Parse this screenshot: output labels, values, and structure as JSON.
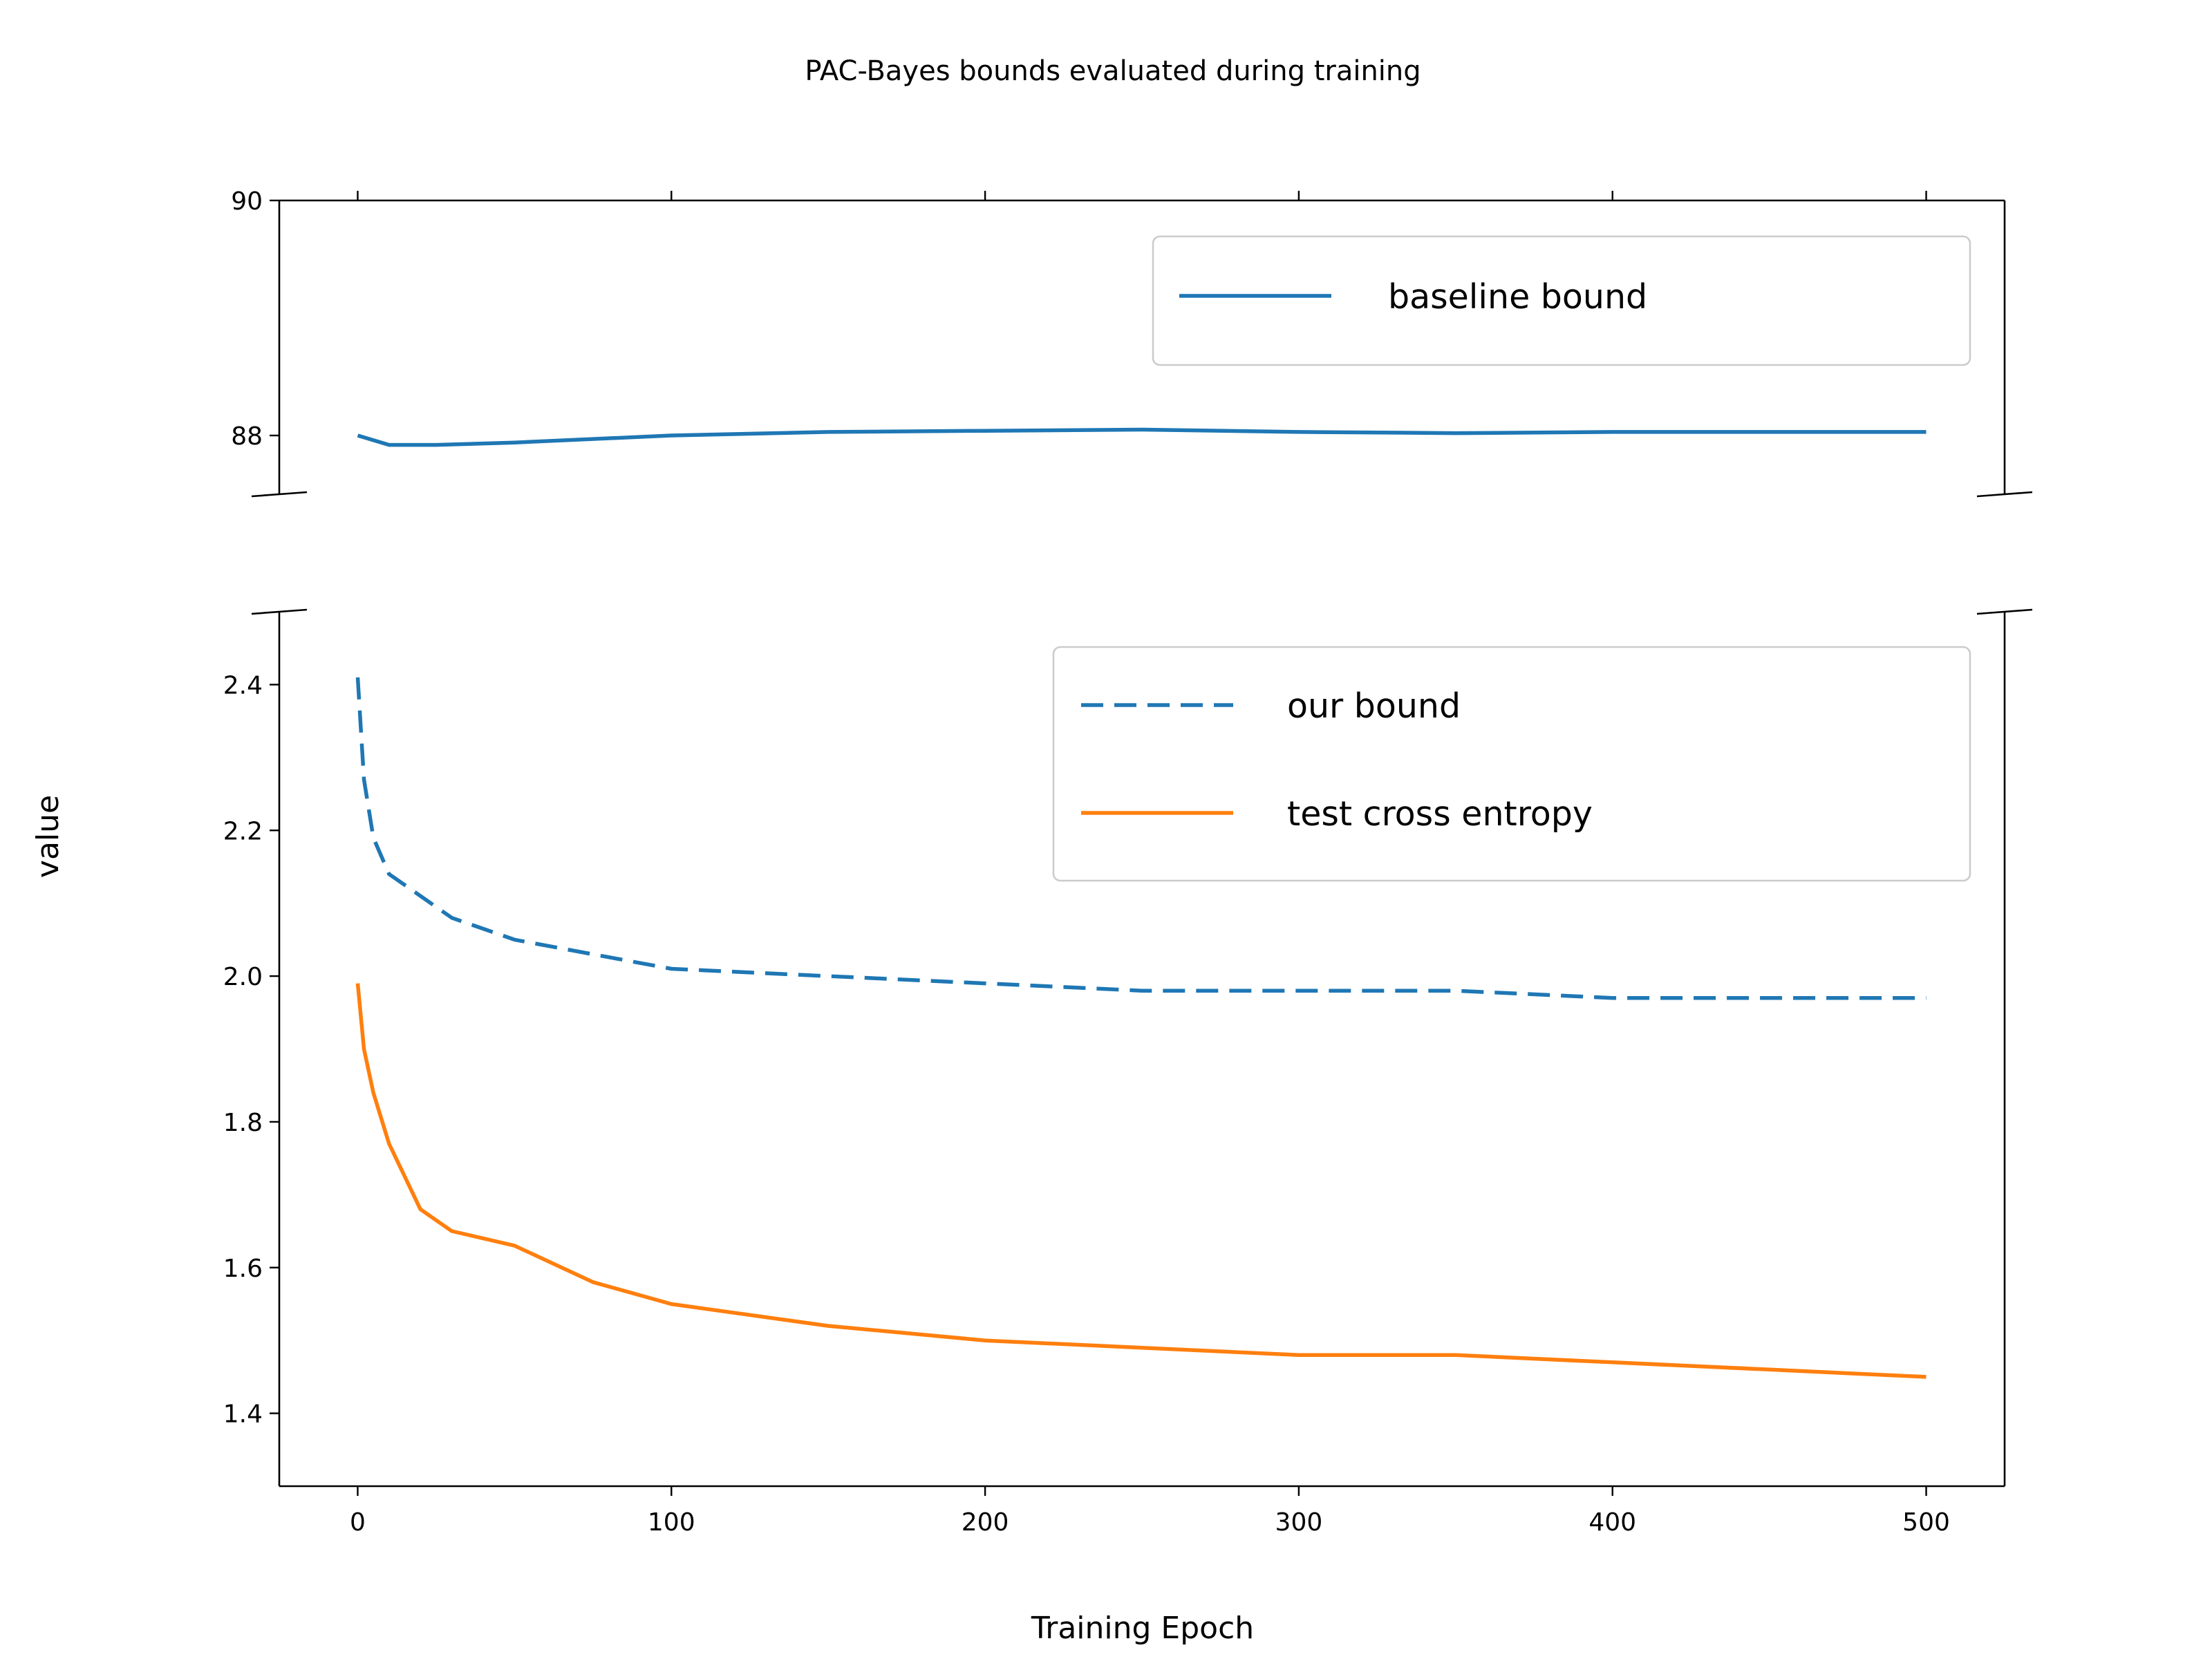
{
  "chart_data": {
    "type": "line",
    "title": "PAC-Bayes bounds evaluated during training",
    "xlabel": "Training Epoch",
    "ylabel": "value",
    "xlim": [
      -25,
      525
    ],
    "xticks": [
      "0",
      "100",
      "200",
      "300",
      "400",
      "500"
    ],
    "grid": false,
    "broken_y_axis": true,
    "panels": [
      {
        "name": "top",
        "ylim": [
          87.5,
          90
        ],
        "yticks": [
          "88",
          "90"
        ],
        "legend_position": "upper right",
        "series": [
          {
            "name": "baseline bound",
            "style": "solid",
            "color": "#1f77b4",
            "x": [
              0,
              10,
              25,
              50,
              100,
              150,
              200,
              250,
              300,
              350,
              400,
              450,
              500
            ],
            "values": [
              88.0,
              87.92,
              87.92,
              87.94,
              88.0,
              88.03,
              88.04,
              88.05,
              88.03,
              88.02,
              88.03,
              88.03,
              88.03
            ]
          }
        ]
      },
      {
        "name": "bottom",
        "ylim": [
          1.3,
          2.5
        ],
        "yticks": [
          "1.4",
          "1.6",
          "1.8",
          "2.0",
          "2.2",
          "2.4"
        ],
        "legend_position": "upper right",
        "series": [
          {
            "name": "our bound",
            "style": "dashed",
            "color": "#1f77b4",
            "x": [
              0,
              2,
              5,
              10,
              20,
              30,
              50,
              75,
              100,
              150,
              200,
              250,
              300,
              350,
              400,
              450,
              500
            ],
            "values": [
              2.41,
              2.27,
              2.19,
              2.14,
              2.11,
              2.08,
              2.05,
              2.03,
              2.01,
              2.0,
              1.99,
              1.98,
              1.98,
              1.98,
              1.97,
              1.97,
              1.97
            ]
          },
          {
            "name": "test cross entropy",
            "style": "solid",
            "color": "#ff7f0e",
            "x": [
              0,
              2,
              5,
              10,
              20,
              30,
              50,
              75,
              100,
              150,
              200,
              250,
              300,
              350,
              400,
              450,
              500
            ],
            "values": [
              1.99,
              1.9,
              1.84,
              1.77,
              1.68,
              1.65,
              1.63,
              1.58,
              1.55,
              1.52,
              1.5,
              1.49,
              1.48,
              1.48,
              1.47,
              1.46,
              1.45
            ]
          }
        ]
      }
    ]
  }
}
